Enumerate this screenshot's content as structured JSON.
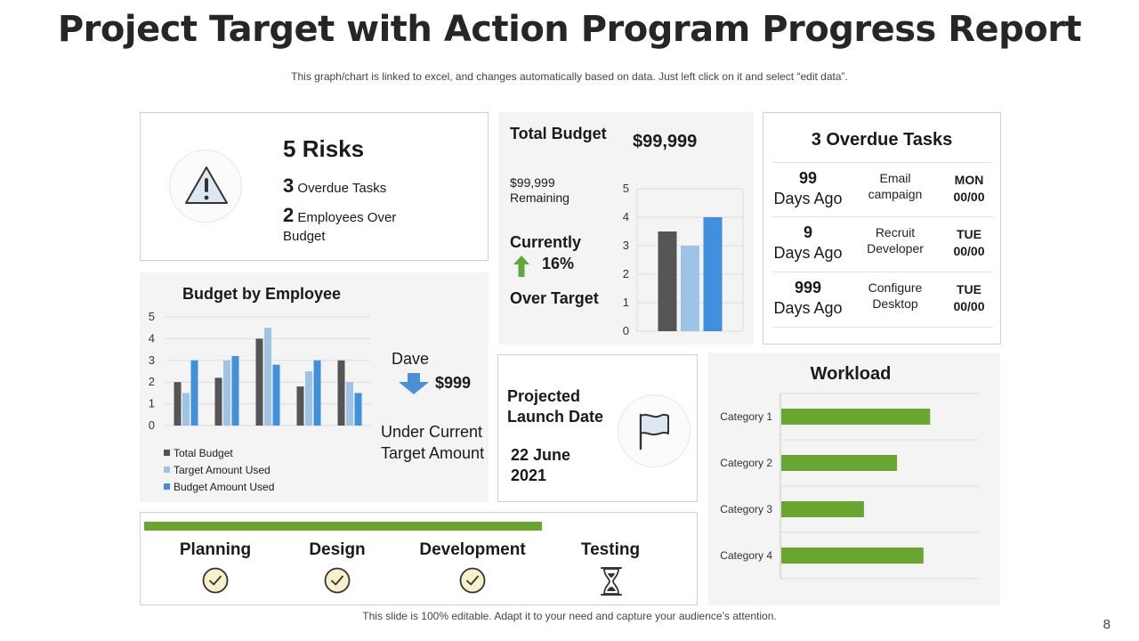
{
  "header": {
    "title": "Project Target with Action Program Progress Report",
    "subtitle": "This graph/chart is linked to excel, and changes automatically based on data. Just left click on it and select “edit data”."
  },
  "risks": {
    "count": "5",
    "label": "Risks",
    "overdue_count": "3",
    "overdue_label": "Overdue Tasks",
    "employees_count": "2",
    "employees_label": "Employees Over Budget"
  },
  "budget": {
    "label": "Total Budget",
    "value": "$99,999",
    "remaining": "$99,999 Remaining",
    "currently_label": "Currently",
    "currently_pct": "16%",
    "over_target": "Over Target"
  },
  "overdue": {
    "title": "3 Overdue Tasks",
    "rows": [
      {
        "days": "99",
        "days_label": "Days Ago",
        "task": "Email campaign",
        "day": "MON",
        "date": "00/00"
      },
      {
        "days": "9",
        "days_label": "Days Ago",
        "task": "Recruit Developer",
        "day": "TUE",
        "date": "00/00"
      },
      {
        "days": "999",
        "days_label": "Days Ago",
        "task": "Configure Desktop",
        "day": "TUE",
        "date": "00/00"
      }
    ]
  },
  "budget_by_employee": {
    "title": "Budget by Employee",
    "legend": [
      "Total Budget",
      "Target Amount Used",
      "Budget Amount Used"
    ],
    "employee_name": "Dave",
    "employee_amount": "$999",
    "employee_desc": "Under Current Target Amount"
  },
  "launch": {
    "label": "Projected Launch Date",
    "date": "22 June 2021"
  },
  "workload": {
    "title": "Workload"
  },
  "phases": {
    "progress": 0.73,
    "items": [
      {
        "label": "Planning",
        "status": "done"
      },
      {
        "label": "Design",
        "status": "done"
      },
      {
        "label": "Development",
        "status": "done"
      },
      {
        "label": "Testing",
        "status": "in-progress"
      }
    ]
  },
  "footer": {
    "text": "This slide is 100% editable. Adapt it to your need and capture your audience’s attention.",
    "page_number": "8"
  },
  "colors": {
    "dark_bar": "#555555",
    "light_blue": "#9dc3e6",
    "blue": "#4190db",
    "green": "#6aa531",
    "arrow_green": "#5fa83a",
    "arrow_blue": "#4a90d9"
  },
  "chart_data": [
    {
      "type": "bar",
      "title": "Budget by Employee",
      "categories": [
        "1",
        "2",
        "3",
        "4",
        "5"
      ],
      "series": [
        {
          "name": "Total Budget",
          "values": [
            2,
            2.2,
            4,
            1.8,
            3
          ]
        },
        {
          "name": "Target Amount Used",
          "values": [
            1.5,
            3,
            4.5,
            2.5,
            2
          ]
        },
        {
          "name": "Budget Amount Used",
          "values": [
            3,
            3.2,
            2.8,
            3,
            1.5
          ]
        }
      ],
      "ylim": [
        0,
        5
      ],
      "yticks": [
        "0",
        "1",
        "2",
        "3",
        "4",
        "5"
      ],
      "legend": "bottom-left"
    },
    {
      "type": "bar",
      "categories": [
        "1"
      ],
      "series": [
        {
          "values": [
            3.5
          ]
        },
        {
          "values": [
            3
          ]
        },
        {
          "values": [
            4
          ]
        }
      ],
      "ylim": [
        0,
        5
      ],
      "yticks": [
        "0",
        "1",
        "2",
        "3",
        "4",
        "5"
      ]
    },
    {
      "type": "bar",
      "orientation": "horizontal",
      "title": "Workload",
      "categories": [
        "Category 1",
        "Category 2",
        "Category 3",
        "Category 4"
      ],
      "values": [
        4.5,
        3.5,
        2.5,
        4.3
      ],
      "xlim": [
        0,
        6
      ]
    }
  ]
}
